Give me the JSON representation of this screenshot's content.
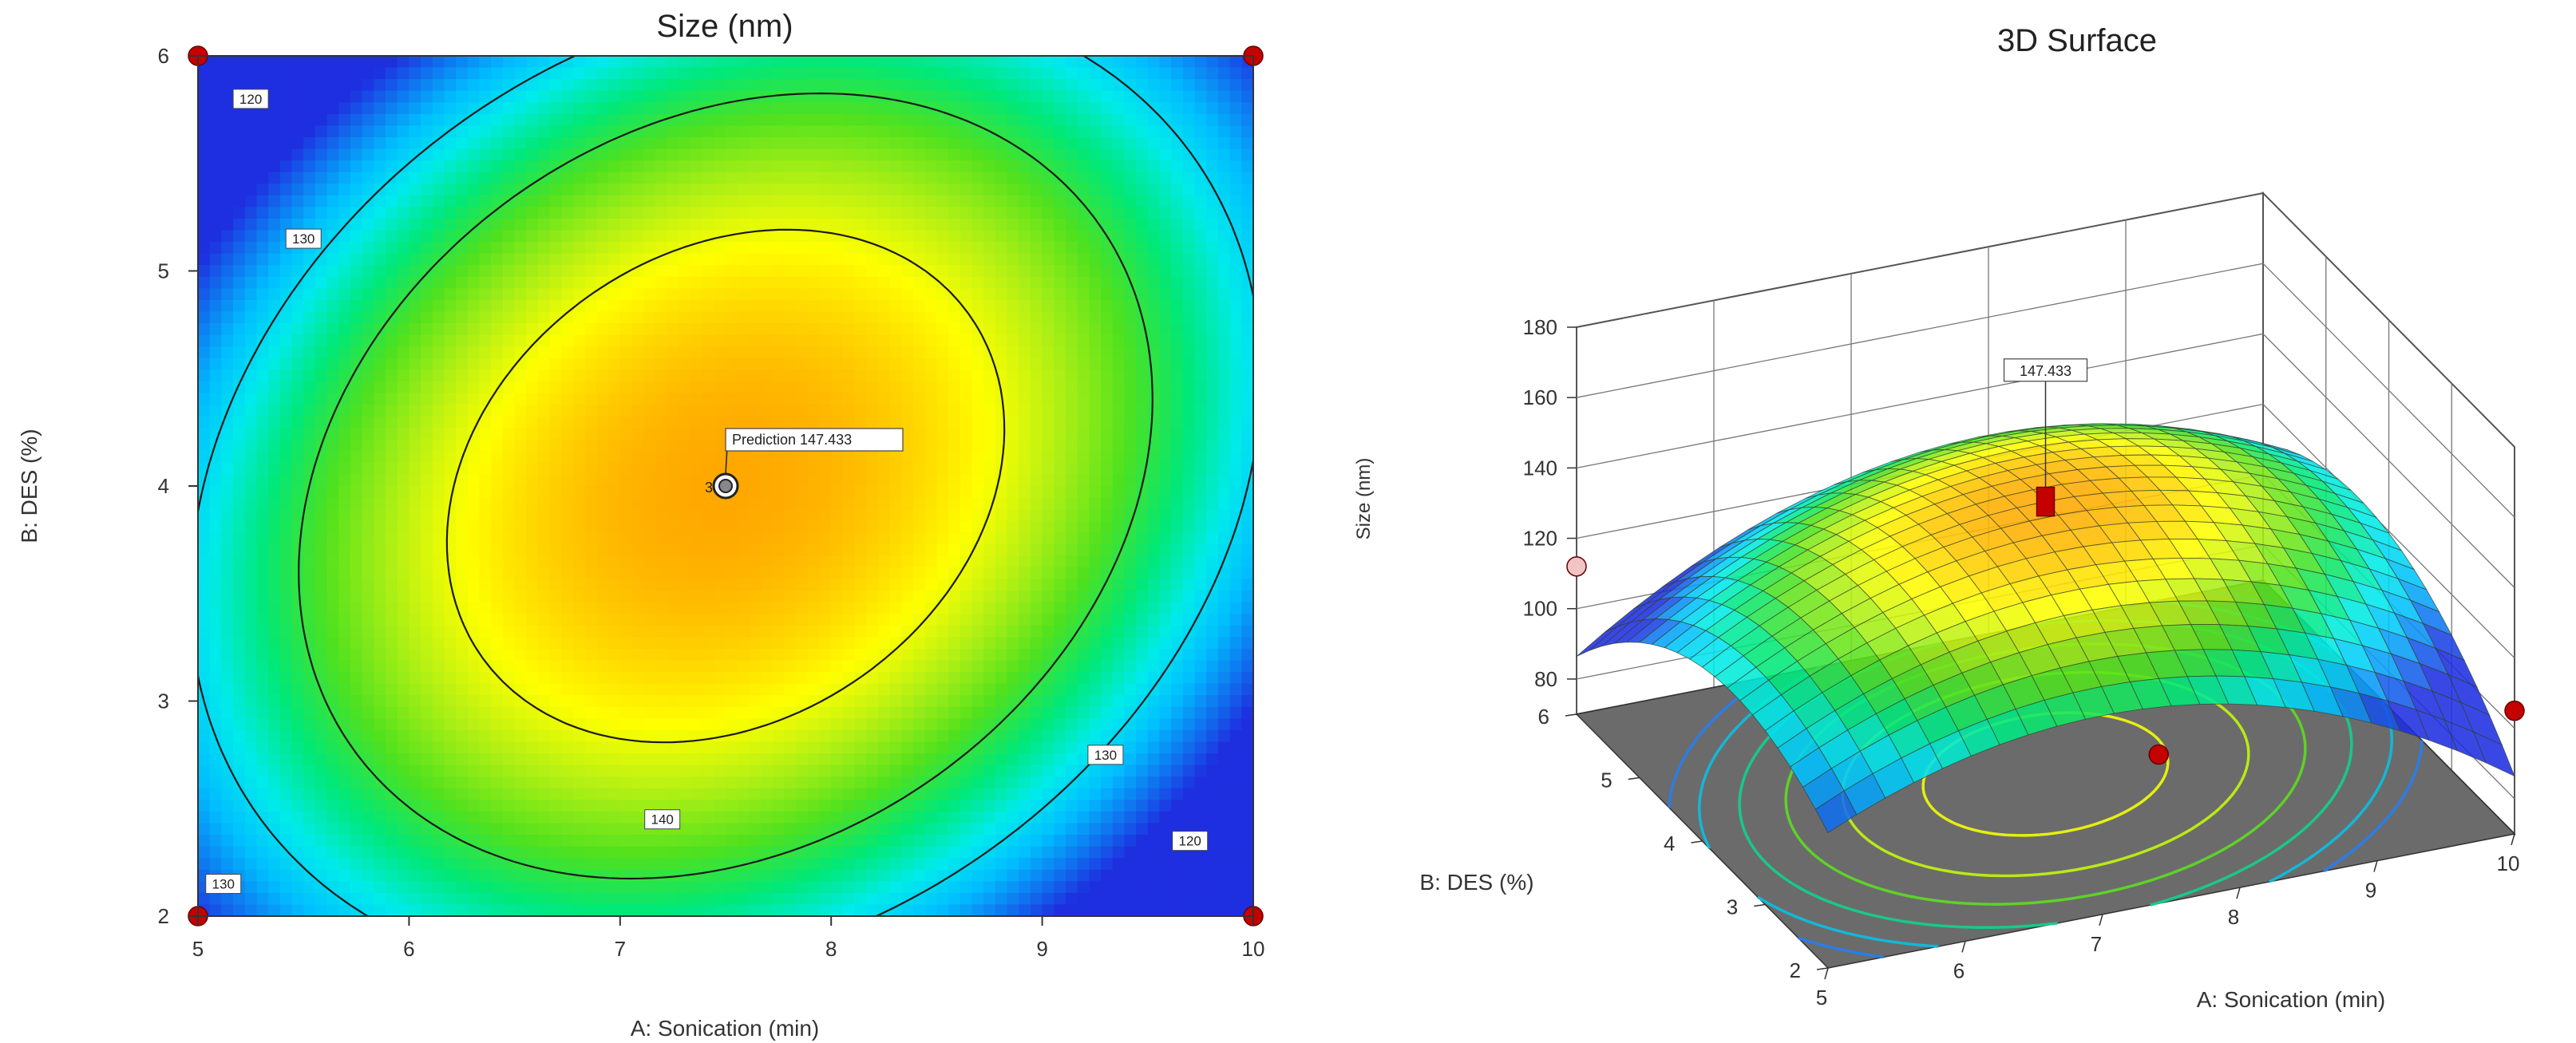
{
  "chart_data": [
    {
      "type": "contour",
      "title": "Size (nm)",
      "xlabel": "A: Sonication (min)",
      "ylabel": "B: DES (%)",
      "xlim": [
        5,
        10
      ],
      "ylim": [
        2,
        6
      ],
      "x_ticks": [
        "5",
        "6",
        "7",
        "8",
        "9",
        "10"
      ],
      "y_ticks": [
        "2",
        "3",
        "4",
        "5",
        "6"
      ],
      "contour_levels": [
        120,
        130,
        140
      ],
      "contour_labels": [
        "120",
        "130",
        "130",
        "130",
        "120",
        "140"
      ],
      "model": {
        "center": [
          7.5,
          4.0
        ],
        "max": 147.433
      },
      "design_points": [
        [
          5,
          2
        ],
        [
          10,
          2
        ],
        [
          5,
          6
        ],
        [
          10,
          6
        ],
        [
          7.5,
          4
        ]
      ],
      "center_point_replicates": "3",
      "prediction": {
        "label": "Prediction",
        "value": "147.433",
        "x": 7.5,
        "y": 4
      }
    },
    {
      "type": "surface3d",
      "title": "3D Surface",
      "xlabel": "A: Sonication (min)",
      "ylabel": "B: DES (%)",
      "zlabel": "Size (nm)",
      "x_ticks": [
        "5",
        "6",
        "7",
        "8",
        "9",
        "10"
      ],
      "y_ticks": [
        "2",
        "3",
        "4",
        "5",
        "6"
      ],
      "z_ticks": [
        "80",
        "100",
        "120",
        "140",
        "160",
        "180"
      ],
      "xlim": [
        5,
        10
      ],
      "ylim": [
        2,
        6
      ],
      "zlim": [
        70,
        180
      ],
      "peak": {
        "x": 7.5,
        "y": 4,
        "value": "147.433"
      },
      "design_points": [
        [
          5,
          6,
          112
        ],
        [
          10,
          2,
          105
        ],
        [
          7.5,
          2.2,
          108
        ],
        [
          7.5,
          4,
          147.433
        ]
      ]
    }
  ],
  "colors": {
    "low": "#1e2fe0",
    "high": "#ffa200",
    "design_point": "#c40000",
    "floor": "#6b6b6b"
  }
}
